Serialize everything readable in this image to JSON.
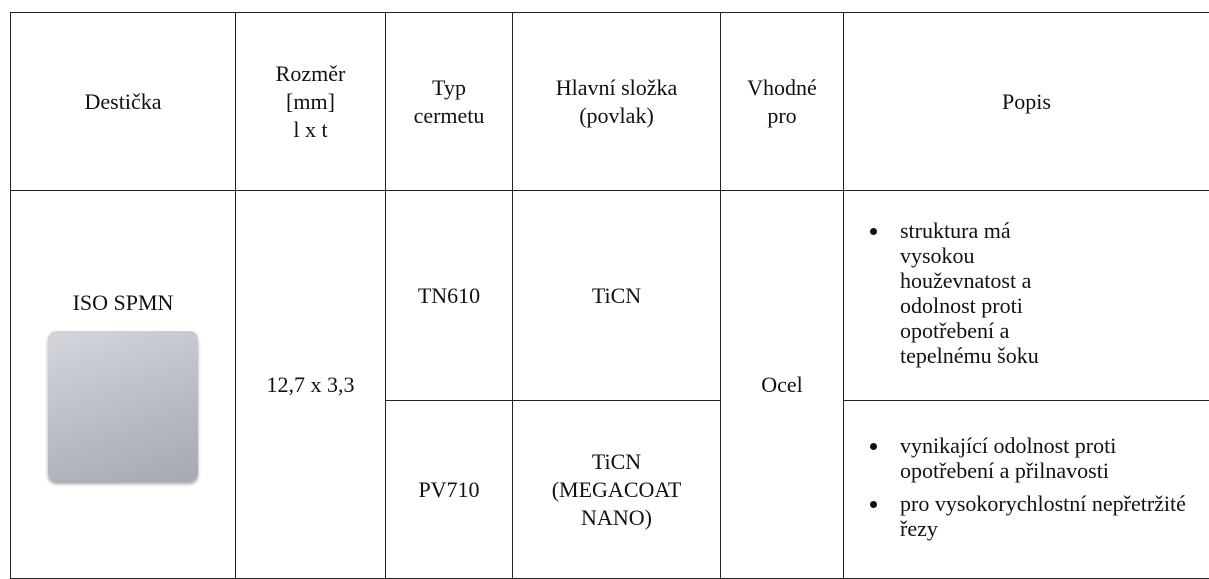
{
  "table": {
    "headers": [
      [
        "Destička"
      ],
      [
        "Rozměr",
        "[mm]",
        "l x t"
      ],
      [
        "Typ",
        "cermetu"
      ],
      [
        "Hlavní složka",
        "(povlak)"
      ],
      [
        "Vhodné",
        "pro"
      ],
      [
        "Popis"
      ]
    ],
    "insert": {
      "name": "ISO SPMN",
      "size": "12,7 x 3,3",
      "suitable_for": "Ocel"
    },
    "rows": [
      {
        "type": "TN610",
        "component": [
          "TiCN"
        ],
        "description": [
          "struktura má vysokou houževnatost a odolnost proti opotřebení a tepelnému šoku"
        ]
      },
      {
        "type": "PV710",
        "component": [
          "TiCN",
          "(MEGACOAT",
          "NANO)"
        ],
        "description": [
          "vynikající odolnost proti opotřebení a přilnavosti",
          "pro vysokorychlostní nepřetržité řezy"
        ]
      }
    ]
  }
}
